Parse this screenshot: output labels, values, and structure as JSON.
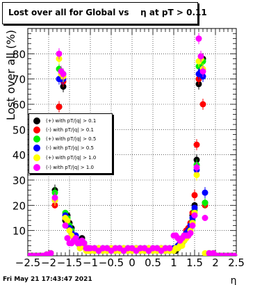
{
  "chart_data": {
    "type": "scatter",
    "title": "Lost over all for Global vs    η at pT > 0.11",
    "xlabel": "η",
    "ylabel": "Lost over all (%)",
    "xlim": [
      -2.5,
      2.5
    ],
    "ylim": [
      0,
      90
    ],
    "xticks": [
      "−2.5",
      "−2",
      "−1.5",
      "−1",
      "−0.5",
      "0",
      "0.5",
      "1",
      "1.5",
      "2",
      "2.5"
    ],
    "yticks": [
      "10",
      "20",
      "30",
      "40",
      "50",
      "60",
      "70",
      "80"
    ],
    "grid": true,
    "legend_position": "middle-left",
    "x": [
      -2.45,
      -2.35,
      -2.25,
      -2.15,
      -2.05,
      -1.95,
      -1.85,
      -1.75,
      -1.7,
      -1.65,
      -1.6,
      -1.55,
      -1.5,
      -1.45,
      -1.4,
      -1.35,
      -1.3,
      -1.25,
      -1.2,
      -1.15,
      -1.1,
      -1.05,
      -1.0,
      -0.9,
      -0.8,
      -0.7,
      -0.6,
      -0.5,
      -0.4,
      -0.3,
      -0.2,
      -0.1,
      0.0,
      0.1,
      0.2,
      0.3,
      0.4,
      0.5,
      0.6,
      0.7,
      0.8,
      0.9,
      1.0,
      1.05,
      1.1,
      1.15,
      1.2,
      1.25,
      1.3,
      1.35,
      1.4,
      1.45,
      1.5,
      1.55,
      1.6,
      1.65,
      1.7,
      1.75,
      1.85,
      1.95,
      2.05,
      2.15,
      2.25,
      2.35,
      2.45
    ],
    "series": [
      {
        "name": "(+) with pT/|q| > 0.1",
        "color": "#000000",
        "values": [
          0,
          0,
          0,
          0,
          0.5,
          1,
          26,
          59,
          70,
          67,
          14,
          16,
          13,
          11,
          8,
          8,
          6,
          4,
          7,
          5,
          3,
          2,
          2,
          2,
          3,
          2,
          3,
          3,
          2,
          3,
          2,
          2,
          3,
          3,
          3,
          2,
          3,
          2,
          3,
          2,
          3,
          2,
          2,
          2,
          3,
          4,
          5,
          7,
          9,
          10,
          12,
          16,
          20,
          38,
          68,
          72,
          78,
          21,
          1,
          1,
          0,
          0,
          0,
          0,
          0
        ]
      },
      {
        "name": "(-) with pT/|q| > 0.1",
        "color": "#ff0000",
        "values": [
          0,
          0,
          0,
          0,
          0.5,
          1,
          20,
          59,
          70,
          69,
          15,
          14,
          12,
          9,
          8,
          7,
          5,
          4,
          6,
          4,
          3,
          3,
          2,
          3,
          2,
          3,
          2,
          3,
          3,
          2,
          3,
          3,
          2,
          3,
          2,
          3,
          2,
          3,
          2,
          3,
          2,
          3,
          3,
          3,
          4,
          5,
          6,
          8,
          10,
          11,
          13,
          17,
          24,
          44,
          70,
          73,
          60,
          20,
          1,
          1,
          0,
          0,
          0,
          0,
          0
        ]
      },
      {
        "name": "(+) with pT/|q| > 0.5",
        "color": "#00ee00",
        "values": [
          0,
          0,
          0,
          0,
          0.5,
          1,
          25,
          74,
          73,
          72,
          17,
          15,
          12,
          10,
          8,
          7,
          5,
          4,
          6,
          5,
          3,
          3,
          3,
          2,
          3,
          2,
          3,
          2,
          3,
          2,
          3,
          2,
          3,
          2,
          3,
          2,
          3,
          2,
          3,
          2,
          3,
          2,
          3,
          3,
          3,
          4,
          5,
          6,
          8,
          9,
          11,
          14,
          18,
          36,
          75,
          76,
          77,
          21,
          1,
          1,
          0,
          0,
          0,
          0,
          0
        ]
      },
      {
        "name": "(-) with pT/|q| > 0.5",
        "color": "#0000ff",
        "values": [
          0,
          0,
          0,
          0,
          0.5,
          1,
          22,
          70,
          70,
          70,
          16,
          14,
          11,
          9,
          8,
          8,
          6,
          5,
          6,
          4,
          3,
          3,
          2,
          3,
          2,
          3,
          2,
          3,
          2,
          3,
          2,
          3,
          2,
          3,
          2,
          3,
          2,
          3,
          2,
          3,
          2,
          3,
          3,
          3,
          4,
          5,
          6,
          7,
          9,
          10,
          12,
          15,
          19,
          34,
          72,
          73,
          71,
          25,
          1,
          1,
          0,
          0,
          0,
          0,
          0
        ]
      },
      {
        "name": "(+) with pT/|q| > 1.0",
        "color": "#ffff00",
        "values": [
          0,
          0,
          0,
          0,
          0.5,
          1,
          22,
          78,
          72,
          71,
          15,
          14,
          10,
          8,
          7,
          6,
          5,
          3,
          5,
          4,
          2,
          2,
          2,
          2,
          3,
          2,
          2,
          3,
          2,
          2,
          3,
          2,
          2,
          3,
          2,
          2,
          3,
          2,
          2,
          3,
          2,
          2,
          2,
          3,
          3,
          4,
          4,
          6,
          7,
          8,
          10,
          13,
          17,
          32,
          77,
          78,
          74,
          1,
          1,
          1,
          0,
          0,
          0,
          0,
          0
        ]
      },
      {
        "name": "(-) with pT/|q| > 1.0",
        "color": "#ff00ff",
        "values": [
          0,
          0,
          0,
          0,
          0.5,
          1,
          23,
          80,
          73,
          72,
          12,
          7,
          5,
          5,
          6,
          7,
          5,
          5,
          6,
          5,
          3,
          3,
          3,
          3,
          2,
          3,
          3,
          2,
          3,
          3,
          2,
          3,
          3,
          2,
          3,
          3,
          2,
          3,
          3,
          2,
          3,
          3,
          8,
          8,
          7,
          6,
          7,
          8,
          8,
          8,
          9,
          12,
          16,
          35,
          86,
          79,
          73,
          15,
          1,
          1,
          0,
          0,
          0,
          0,
          0
        ]
      }
    ]
  },
  "footer": {
    "timestamp": "Fri May 21 17:43:47 2021"
  }
}
